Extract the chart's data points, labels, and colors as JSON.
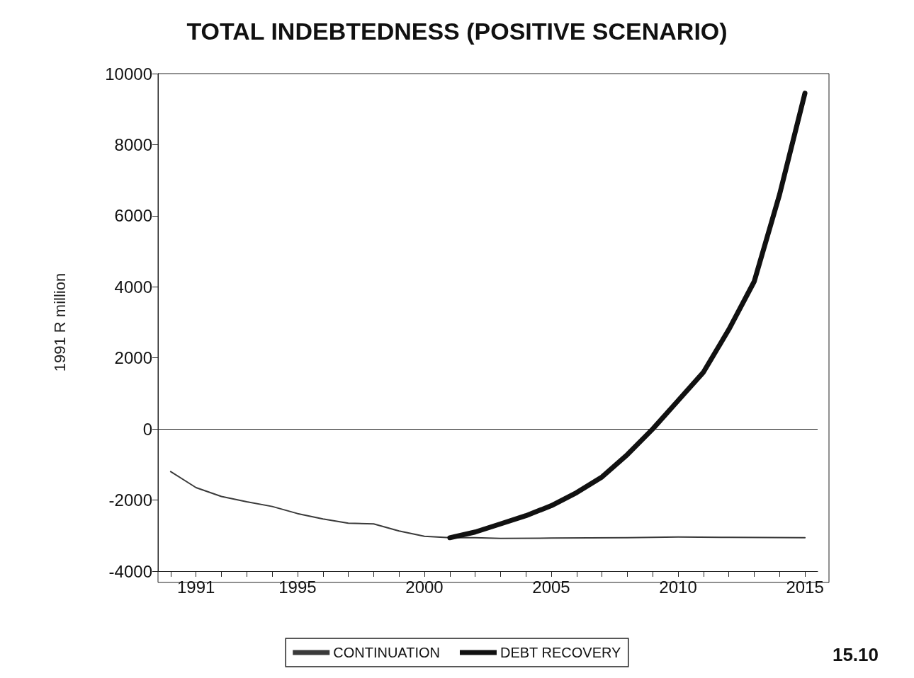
{
  "chart_data": {
    "type": "line",
    "title": "TOTAL INDEBTEDNESS (POSITIVE SCENARIO)",
    "ylabel": "1991 R million",
    "series": [
      {
        "name": "CONTINUATION",
        "color": "#3a3a3a",
        "x": [
          1990,
          1991,
          1992,
          1993,
          1994,
          1995,
          1996,
          1997,
          1998,
          1999,
          2000,
          2001,
          2002,
          2003,
          2005,
          2008,
          2010,
          2012,
          2015
        ],
        "values": [
          -1200,
          -1650,
          -1900,
          -2050,
          -2180,
          -2380,
          -2530,
          -2650,
          -2670,
          -2870,
          -3020,
          -3060,
          -3060,
          -3080,
          -3070,
          -3060,
          -3040,
          -3050,
          -3060
        ]
      },
      {
        "name": "DEBT RECOVERY",
        "color": "#111111",
        "x": [
          2001,
          2002,
          2003,
          2004,
          2005,
          2006,
          2007,
          2008,
          2009,
          2010,
          2011,
          2012,
          2013,
          2014,
          2015
        ],
        "values": [
          -3060,
          -2900,
          -2670,
          -2440,
          -2160,
          -1790,
          -1350,
          -720,
          0,
          800,
          1600,
          2800,
          4150,
          6600,
          9450
        ]
      }
    ],
    "xlim": [
      1989.5,
      2015.5
    ],
    "xticks": [
      {
        "value": 1990,
        "label": null
      },
      1991,
      {
        "value": 1992,
        "label": null
      },
      {
        "value": 1993,
        "label": null
      },
      {
        "value": 1994,
        "label": null
      },
      1995,
      {
        "value": 1996,
        "label": null
      },
      {
        "value": 1997,
        "label": null
      },
      {
        "value": 1998,
        "label": null
      },
      {
        "value": 1999,
        "label": null
      },
      2000,
      {
        "value": 2001,
        "label": null
      },
      {
        "value": 2002,
        "label": null
      },
      {
        "value": 2003,
        "label": null
      },
      {
        "value": 2004,
        "label": null
      },
      2005,
      {
        "value": 2006,
        "label": null
      },
      {
        "value": 2007,
        "label": null
      },
      {
        "value": 2008,
        "label": null
      },
      {
        "value": 2009,
        "label": null
      },
      2010,
      {
        "value": 2011,
        "label": null
      },
      {
        "value": 2012,
        "label": null
      },
      {
        "value": 2013,
        "label": null
      },
      {
        "value": 2014,
        "label": null
      },
      2015
    ],
    "ylim": [
      -4000,
      10000
    ],
    "yticks": [
      -4000,
      -2000,
      0,
      2000,
      4000,
      6000,
      8000,
      10000
    ],
    "ref_lines": [
      {
        "axis": "y",
        "value": 0,
        "color": "#222222"
      }
    ],
    "grid": false,
    "legend": "bottom",
    "marker": "none",
    "line_style": "solid",
    "annotations": [
      "15.10"
    ]
  }
}
